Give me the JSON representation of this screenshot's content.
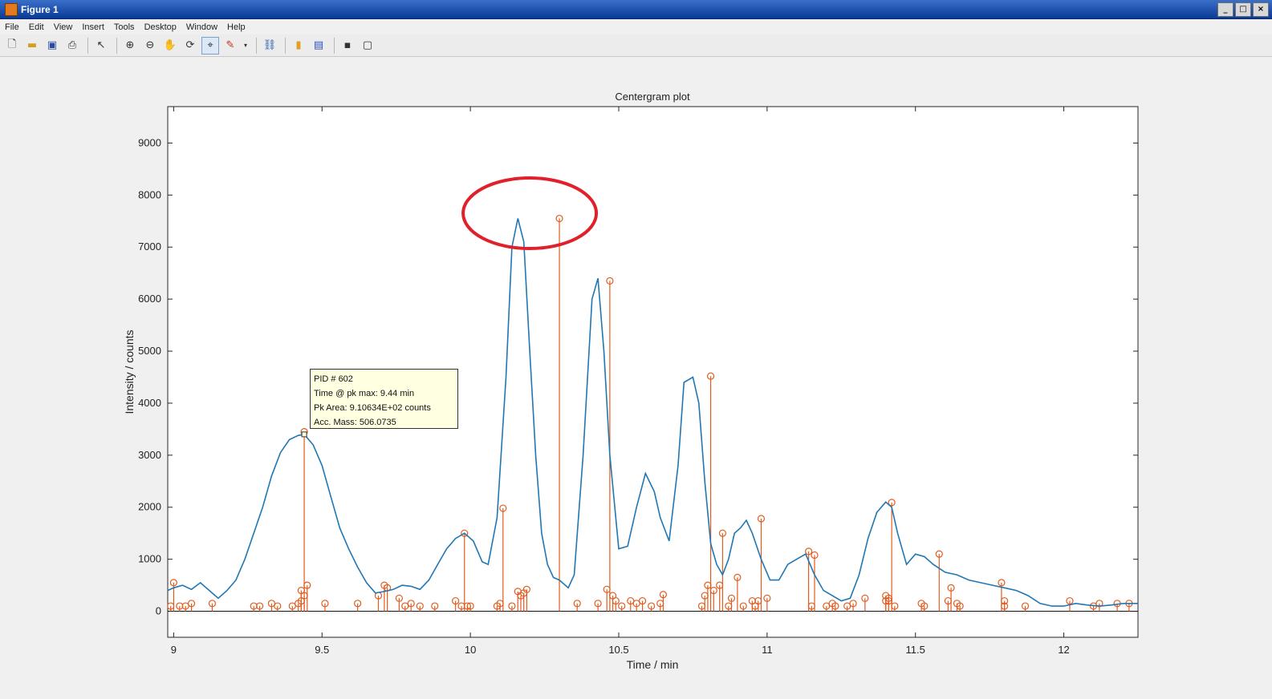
{
  "window": {
    "title": "Figure 1",
    "buttons": [
      "_",
      "□",
      "×"
    ]
  },
  "menu": [
    "File",
    "Edit",
    "View",
    "Insert",
    "Tools",
    "Desktop",
    "Window",
    "Help"
  ],
  "toolbar_icons": [
    "new-figure-icon",
    "open-file-icon",
    "save-icon",
    "print-icon",
    "select-arrow-icon",
    "zoom-in-icon",
    "zoom-out-icon",
    "pan-hand-icon",
    "rotate-3d-icon",
    "data-cursor-icon",
    "brush-icon",
    "link-plot-icon",
    "colorbar-icon",
    "legend-icon",
    "hide-plot-tools-icon",
    "show-plot-tools-icon"
  ],
  "datatip": {
    "lines": [
      "PID # 602",
      "Time @ pk max: 9.44 min",
      "Pk Area: 9.10634E+02 counts",
      "Acc. Mass: 506.0735"
    ],
    "x": 9.44,
    "y": 3400
  },
  "annotation": {
    "type": "ellipse",
    "color": "#e0202a",
    "cx": 10.2,
    "cy": 7650
  },
  "colors": {
    "trace": "#1f77b4",
    "stems": "#e35b1e",
    "annotation": "#e0202a"
  },
  "chart_data": {
    "type": "line",
    "title": "Centergram plot",
    "xlabel": "Time / min",
    "ylabel": "Intensity / counts",
    "xlim": [
      8.98,
      12.25
    ],
    "ylim": [
      -500,
      9700
    ],
    "xticks": [
      9,
      9.5,
      10,
      10.5,
      11,
      11.5,
      12
    ],
    "xtick_labels": [
      "9",
      "9.5",
      "10",
      "10.5",
      "11",
      "11.5",
      "12"
    ],
    "yticks": [
      0,
      1000,
      2000,
      3000,
      4000,
      5000,
      6000,
      7000,
      8000,
      9000
    ],
    "ytick_labels": [
      "0",
      "1000",
      "2000",
      "3000",
      "4000",
      "5000",
      "6000",
      "7000",
      "8000",
      "9000"
    ],
    "series": [
      {
        "kind": "line",
        "x": [
          8.98,
          9.0,
          9.03,
          9.06,
          9.09,
          9.12,
          9.15,
          9.18,
          9.21,
          9.24,
          9.27,
          9.3,
          9.33,
          9.36,
          9.39,
          9.42,
          9.44,
          9.47,
          9.5,
          9.53,
          9.56,
          9.59,
          9.62,
          9.65,
          9.68,
          9.71,
          9.74,
          9.77,
          9.8,
          9.83,
          9.86,
          9.89,
          9.92,
          9.95,
          9.98,
          10.01,
          10.04,
          10.06,
          10.09,
          10.12,
          10.14,
          10.16,
          10.18,
          10.2,
          10.22,
          10.24,
          10.26,
          10.28,
          10.3,
          10.33,
          10.35,
          10.38,
          10.41,
          10.43,
          10.45,
          10.47,
          10.5,
          10.53,
          10.56,
          10.59,
          10.62,
          10.64,
          10.67,
          10.7,
          10.72,
          10.75,
          10.77,
          10.79,
          10.81,
          10.83,
          10.85,
          10.87,
          10.89,
          10.91,
          10.93,
          10.95,
          10.98,
          11.01,
          11.04,
          11.07,
          11.1,
          11.13,
          11.16,
          11.19,
          11.22,
          11.25,
          11.28,
          11.31,
          11.34,
          11.37,
          11.4,
          11.42,
          11.44,
          11.47,
          11.5,
          11.53,
          11.56,
          11.6,
          11.64,
          11.68,
          11.72,
          11.76,
          11.8,
          11.84,
          11.88,
          11.92,
          11.96,
          12.0,
          12.04,
          12.08,
          12.12,
          12.16,
          12.2,
          12.25
        ],
        "y": [
          400,
          450,
          500,
          420,
          550,
          400,
          250,
          400,
          600,
          1000,
          1500,
          2000,
          2600,
          3050,
          3300,
          3380,
          3400,
          3200,
          2800,
          2200,
          1600,
          1200,
          850,
          550,
          350,
          380,
          420,
          500,
          480,
          420,
          600,
          900,
          1200,
          1400,
          1500,
          1350,
          950,
          900,
          1800,
          4500,
          7000,
          7550,
          7100,
          5000,
          3000,
          1500,
          900,
          650,
          600,
          450,
          700,
          3000,
          6000,
          6400,
          5000,
          3000,
          1200,
          1250,
          2000,
          2650,
          2300,
          1800,
          1350,
          2800,
          4400,
          4500,
          4000,
          2500,
          1300,
          900,
          700,
          1000,
          1500,
          1600,
          1750,
          1500,
          1000,
          600,
          600,
          900,
          1000,
          1100,
          700,
          400,
          300,
          200,
          250,
          700,
          1400,
          1900,
          2100,
          2000,
          1500,
          900,
          1100,
          1050,
          900,
          750,
          700,
          600,
          550,
          500,
          450,
          400,
          300,
          150,
          100,
          100,
          150,
          120,
          100,
          120,
          150,
          150
        ]
      },
      {
        "kind": "stem",
        "x": [
          8.99,
          9.0,
          9.02,
          9.04,
          9.06,
          9.13,
          9.27,
          9.29,
          9.33,
          9.35,
          9.4,
          9.42,
          9.43,
          9.43,
          9.44,
          9.44,
          9.45,
          9.51,
          9.62,
          9.69,
          9.71,
          9.72,
          9.76,
          9.78,
          9.8,
          9.83,
          9.88,
          9.95,
          9.97,
          9.98,
          9.99,
          10.0,
          10.09,
          10.1,
          10.11,
          10.14,
          10.16,
          10.17,
          10.18,
          10.19,
          10.3,
          10.36,
          10.43,
          10.46,
          10.47,
          10.48,
          10.49,
          10.51,
          10.54,
          10.56,
          10.58,
          10.61,
          10.64,
          10.65,
          10.78,
          10.79,
          10.8,
          10.81,
          10.82,
          10.84,
          10.85,
          10.87,
          10.88,
          10.9,
          10.92,
          10.95,
          10.96,
          10.97,
          10.98,
          11.0,
          11.14,
          11.15,
          11.16,
          11.2,
          11.22,
          11.23,
          11.27,
          11.29,
          11.33,
          11.4,
          11.4,
          11.41,
          11.41,
          11.42,
          11.43,
          11.52,
          11.53,
          11.58,
          11.61,
          11.62,
          11.64,
          11.65,
          11.79,
          11.8,
          11.8,
          11.87,
          12.02,
          12.1,
          12.12,
          12.18,
          12.22
        ],
        "y": [
          100,
          550,
          100,
          100,
          150,
          150,
          100,
          100,
          150,
          100,
          100,
          150,
          200,
          400,
          3450,
          300,
          500,
          150,
          150,
          300,
          500,
          450,
          250,
          100,
          150,
          100,
          100,
          200,
          100,
          1500,
          100,
          100,
          100,
          150,
          1980,
          100,
          380,
          300,
          350,
          420,
          7550,
          150,
          150,
          420,
          6350,
          300,
          200,
          100,
          200,
          150,
          200,
          100,
          150,
          320,
          100,
          300,
          500,
          4520,
          400,
          500,
          1500,
          100,
          250,
          650,
          100,
          200,
          100,
          200,
          1780,
          250,
          1150,
          100,
          1080,
          100,
          150,
          100,
          100,
          150,
          250,
          200,
          300,
          250,
          200,
          2090,
          100,
          150,
          100,
          1100,
          200,
          450,
          150,
          100,
          550,
          100,
          200,
          100,
          200,
          100,
          150,
          150,
          150
        ]
      }
    ],
    "grid": false,
    "baseline": 0
  }
}
